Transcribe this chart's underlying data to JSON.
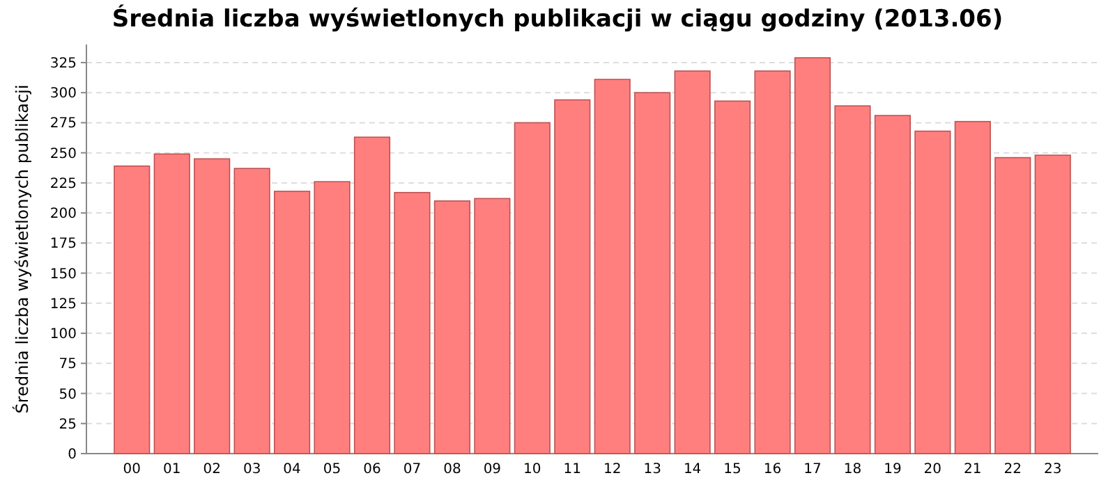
{
  "chart_data": {
    "type": "bar",
    "title": "Średnia liczba wyświetlonych publikacji w ciągu godziny (2013.06)",
    "ylabel": "Średnia liczba wyświetlonych publikacji",
    "categories": [
      "00",
      "01",
      "02",
      "03",
      "04",
      "05",
      "06",
      "07",
      "08",
      "09",
      "10",
      "11",
      "12",
      "13",
      "14",
      "15",
      "16",
      "17",
      "18",
      "19",
      "20",
      "21",
      "22",
      "23"
    ],
    "values": [
      239,
      249,
      245,
      237,
      218,
      226,
      263,
      217,
      210,
      212,
      275,
      294,
      311,
      300,
      318,
      293,
      318,
      329,
      289,
      281,
      268,
      276,
      246,
      248
    ],
    "color": "#ff7f7f",
    "ylim": [
      0,
      340
    ],
    "yticks": [
      0,
      25,
      50,
      75,
      100,
      125,
      150,
      175,
      200,
      225,
      250,
      275,
      300,
      325
    ],
    "grid": "y"
  }
}
